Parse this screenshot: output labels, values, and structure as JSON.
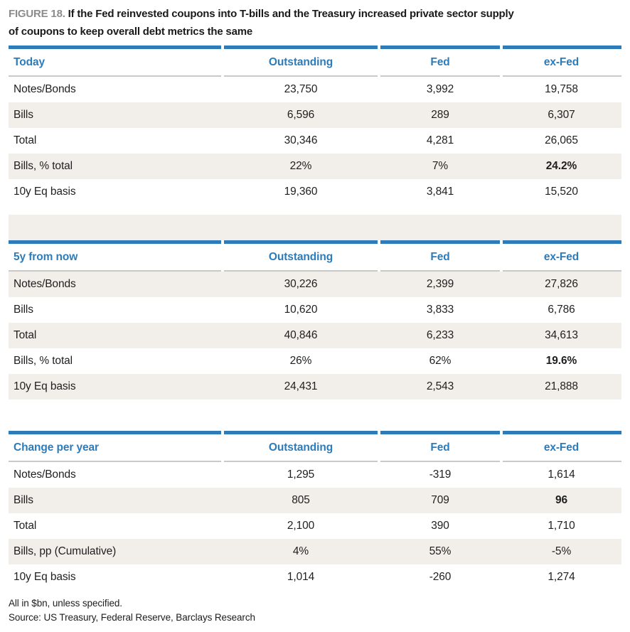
{
  "figure": {
    "label": "FIGURE 18.",
    "title_line1": "If the Fed reinvested coupons into T-bills and the Treasury increased private sector supply",
    "title_line2": "of coupons to keep overall debt metrics the same"
  },
  "columns": [
    "Outstanding",
    "Fed",
    "ex-Fed"
  ],
  "tables": [
    {
      "title": "Today",
      "rows": [
        {
          "label": "Notes/Bonds",
          "outstanding": "23,750",
          "fed": "3,992",
          "exfed": "19,758"
        },
        {
          "label": "Bills",
          "outstanding": "6,596",
          "fed": "289",
          "exfed": "6,307"
        },
        {
          "label": "Total",
          "outstanding": "30,346",
          "fed": "4,281",
          "exfed": "26,065"
        },
        {
          "label": "Bills, % total",
          "outstanding": "22%",
          "fed": "7%",
          "exfed": "24.2%"
        },
        {
          "label": "10y Eq basis",
          "outstanding": "19,360",
          "fed": "3,841",
          "exfed": "15,520"
        }
      ]
    },
    {
      "title": "5y from now",
      "rows": [
        {
          "label": "Notes/Bonds",
          "outstanding": "30,226",
          "fed": "2,399",
          "exfed": "27,826"
        },
        {
          "label": "Bills",
          "outstanding": "10,620",
          "fed": "3,833",
          "exfed": "6,786"
        },
        {
          "label": "Total",
          "outstanding": "40,846",
          "fed": "6,233",
          "exfed": "34,613"
        },
        {
          "label": "Bills, % total",
          "outstanding": "26%",
          "fed": "62%",
          "exfed": "19.6%"
        },
        {
          "label": "10y Eq basis",
          "outstanding": "24,431",
          "fed": "2,543",
          "exfed": "21,888"
        }
      ]
    },
    {
      "title": "Change per year",
      "rows": [
        {
          "label": "Notes/Bonds",
          "outstanding": "1,295",
          "fed": "-319",
          "exfed": "1,614"
        },
        {
          "label": "Bills",
          "outstanding": "805",
          "fed": "709",
          "exfed": "96"
        },
        {
          "label": "Total",
          "outstanding": "2,100",
          "fed": "390",
          "exfed": "1,710"
        },
        {
          "label": "Bills, pp (Cumulative)",
          "outstanding": "4%",
          "fed": "55%",
          "exfed": "-5%"
        },
        {
          "label": "10y Eq basis",
          "outstanding": "1,014",
          "fed": "-260",
          "exfed": "1,274"
        }
      ]
    }
  ],
  "footnotes": [
    "All in $bn, unless specified.",
    "Source: US Treasury, Federal Reserve, Barclays Research"
  ],
  "colors": {
    "accent_blue": "#2d7bb9",
    "row_stripe": "#f2efea",
    "header_rule_gray": "#c9c9c9",
    "figure_label_gray": "#8c8c8c"
  }
}
